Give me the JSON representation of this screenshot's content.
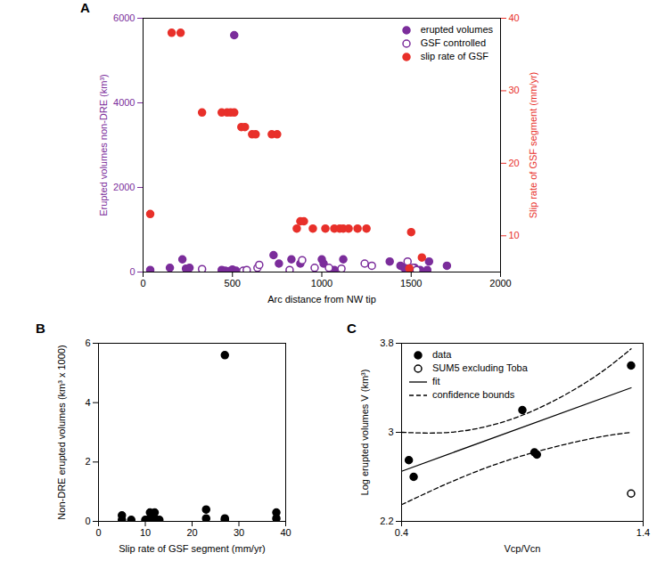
{
  "chart_data": [
    {
      "type": "scatter",
      "title": "A",
      "x_label": "Arc distance from NW tip",
      "y_label": "Erupted volumes non-DRE (km³)",
      "y2_label": "Slip rate of GSF segment (mm/yr)",
      "xlim": [
        0,
        2000
      ],
      "xticks": [
        0,
        500,
        1000,
        1500,
        2000
      ],
      "ylim": [
        0,
        6000
      ],
      "yticks": [
        0,
        2000,
        4000,
        6000
      ],
      "y2lim": [
        5,
        40
      ],
      "y2ticks": [
        10,
        20,
        30,
        40
      ],
      "legend": "top-right",
      "series": [
        {
          "name": "erupted volumes",
          "color": "#7b2d9b",
          "marker": "filled",
          "x": [
            40,
            150,
            220,
            240,
            260,
            440,
            460,
            480,
            500,
            510,
            520,
            730,
            760,
            830,
            880,
            1000,
            1010,
            1070,
            1120,
            1380,
            1440,
            1460,
            1520,
            1550,
            1590,
            1600,
            1700
          ],
          "values": [
            50,
            100,
            300,
            80,
            100,
            50,
            30,
            20,
            60,
            5600,
            30,
            400,
            200,
            300,
            200,
            300,
            200,
            50,
            300,
            250,
            150,
            100,
            100,
            50,
            50,
            250,
            150
          ]
        },
        {
          "name": "GSF controlled",
          "color": "#7b2d9b",
          "marker": "open",
          "x": [
            330,
            560,
            580,
            640,
            650,
            820,
            890,
            960,
            1040,
            1110,
            1240,
            1280,
            1480,
            1510,
            1530
          ],
          "values": [
            70,
            30,
            50,
            100,
            170,
            50,
            280,
            100,
            100,
            80,
            200,
            150,
            250,
            100,
            50
          ]
        },
        {
          "name": "slip rate of GSF",
          "color": "#e8302a",
          "marker": "filled",
          "axis": "y2",
          "x": [
            40,
            160,
            210,
            330,
            440,
            470,
            490,
            510,
            550,
            570,
            610,
            630,
            720,
            750,
            860,
            880,
            900,
            950,
            1020,
            1070,
            1100,
            1120,
            1150,
            1200,
            1250,
            1490,
            1500,
            1560
          ],
          "values": [
            13,
            38,
            38,
            27,
            27,
            27,
            27,
            27,
            25,
            25,
            24,
            24,
            24,
            24,
            11,
            12,
            12,
            11,
            11,
            11,
            11,
            11,
            11,
            11,
            11,
            5.5,
            10.5,
            7
          ]
        }
      ]
    },
    {
      "type": "scatter",
      "title": "B",
      "x_label": "Slip rate of GSF segment (mm/yr)",
      "y_label": "Non-DRE erupted volumes (km³ x 1000)",
      "xlim": [
        0,
        40
      ],
      "xticks": [
        0,
        10,
        20,
        30,
        40
      ],
      "ylim": [
        0,
        6
      ],
      "yticks": [
        0,
        2,
        4,
        6
      ],
      "series": [
        {
          "name": "data",
          "color": "#000000",
          "marker": "filled",
          "x": [
            5,
            5,
            7,
            10,
            11,
            11,
            12,
            12,
            13,
            23,
            23,
            27,
            27,
            27,
            38,
            38
          ],
          "values": [
            0.2,
            0.05,
            0.05,
            0.05,
            0.1,
            0.3,
            0.3,
            0.1,
            0.05,
            0.4,
            0.1,
            5.6,
            0.05,
            0.1,
            0.3,
            0.1
          ]
        }
      ]
    },
    {
      "type": "scatter",
      "title": "C",
      "x_label": "Vcp/Vcn",
      "y_label": "Log erupted volumes V (km³)",
      "xlim": [
        0.4,
        1.4
      ],
      "xticks": [
        0.4,
        1.4
      ],
      "ylim": [
        2.2,
        3.8
      ],
      "yticks": [
        2.2,
        3,
        3.8
      ],
      "legend": "top-left",
      "series": [
        {
          "name": "data",
          "color": "#000000",
          "marker": "filled",
          "type": "scatter",
          "x": [
            0.43,
            0.45,
            0.9,
            0.95,
            0.96,
            1.35
          ],
          "values": [
            2.75,
            2.6,
            3.2,
            2.82,
            2.8,
            3.6
          ]
        },
        {
          "name": "SUM5 excluding Toba",
          "color": "#000000",
          "marker": "open",
          "type": "scatter",
          "x": [
            1.35
          ],
          "values": [
            2.45
          ]
        },
        {
          "name": "fit",
          "color": "#000000",
          "type": "line",
          "line_style": "solid",
          "x": [
            0.4,
            1.35
          ],
          "values": [
            2.65,
            3.4
          ]
        },
        {
          "name": "confidence bounds",
          "color": "#000000",
          "type": "band_lines",
          "line_style": "dashed",
          "x": [
            0.4,
            0.6,
            0.8,
            1.0,
            1.2,
            1.35
          ],
          "upper": [
            3.0,
            3.0,
            3.08,
            3.25,
            3.5,
            3.75
          ],
          "lower": [
            2.35,
            2.55,
            2.72,
            2.85,
            2.95,
            3.0
          ]
        }
      ]
    }
  ]
}
